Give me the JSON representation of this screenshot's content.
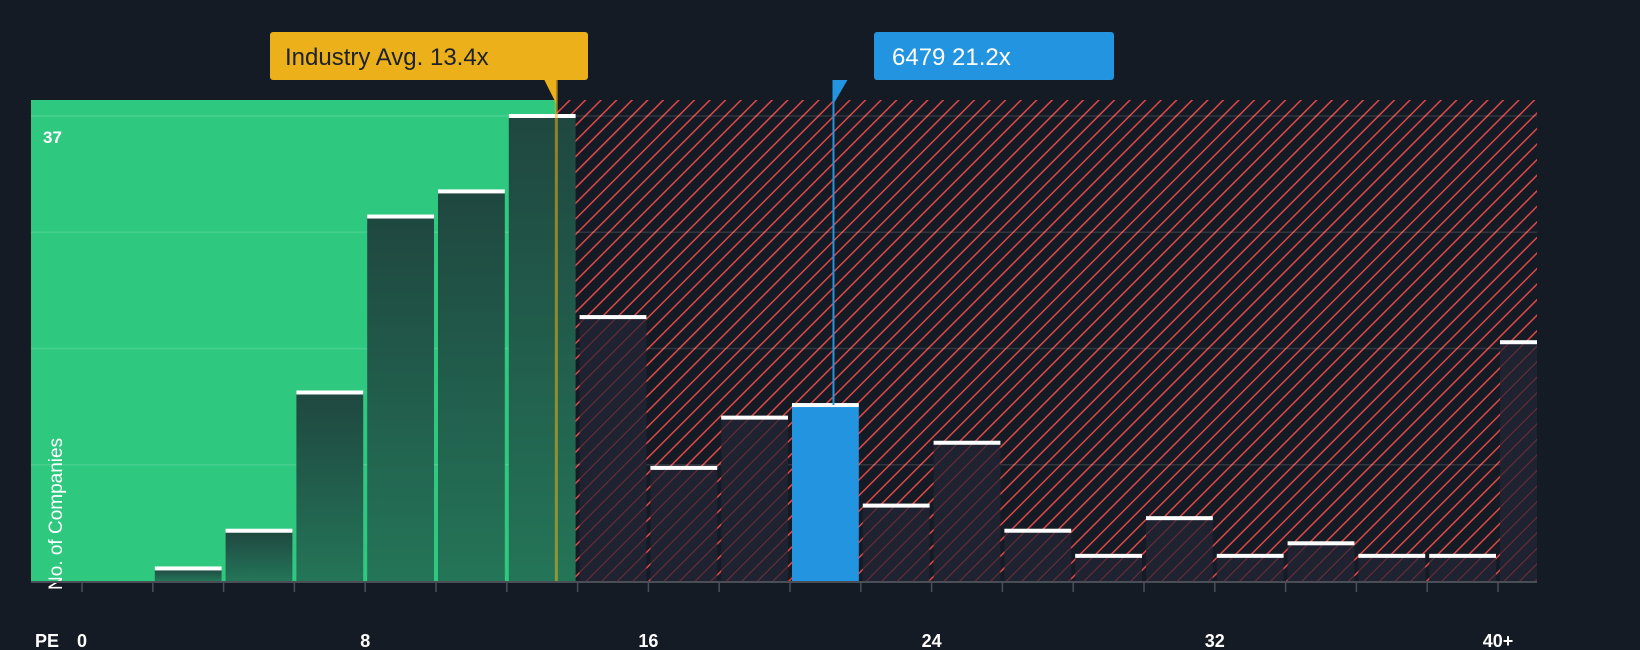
{
  "colors": {
    "background": "#151b24",
    "undervalued_zone": "#2ec97f",
    "overvalued_hatch": "#e04848",
    "bar_dark": "#214a40",
    "bar_hatched": "#1f2230",
    "highlight_bar": "#2394e0",
    "industry_avg": "#ebb01a",
    "bar_cap": "#ffffff",
    "axis": "#4a4f57"
  },
  "annotations": {
    "industry_avg_label": "Industry Avg. 13.4x",
    "industry_avg_value": 13.4,
    "company_label": "6479 21.2x",
    "company_ticker": "6479",
    "company_value": 21.2
  },
  "axis": {
    "x_prefix": "PE",
    "y_label": "No. of Companies",
    "y_max_label": "37"
  },
  "chart_data": {
    "type": "bar",
    "title": "",
    "xlabel": "PE",
    "ylabel": "No. of Companies",
    "categories": [
      "0-2",
      "2-4",
      "4-6",
      "6-8",
      "8-10",
      "10-12",
      "12-14",
      "14-16",
      "16-18",
      "18-20",
      "20-22",
      "22-24",
      "24-26",
      "26-28",
      "28-30",
      "30-32",
      "32-34",
      "34-36",
      "36-38",
      "38-40",
      "40+"
    ],
    "values": [
      0,
      1,
      4,
      15,
      29,
      31,
      37,
      21,
      9,
      13,
      14,
      6,
      11,
      4,
      2,
      5,
      2,
      3,
      2,
      2,
      19
    ],
    "highlight_category": "20-22",
    "x_tick_labels": [
      "0",
      "8",
      "16",
      "24",
      "32",
      "40+"
    ],
    "x_tick_values": [
      0,
      8,
      16,
      24,
      32,
      40
    ],
    "ylim": [
      0,
      37
    ],
    "y_tick_labels": [
      "37"
    ],
    "grid": true,
    "legend": "none",
    "reference_lines": [
      {
        "label": "Industry Avg. 13.4x",
        "x": 13.4
      },
      {
        "label": "6479 21.2x",
        "x": 21.2
      }
    ]
  }
}
